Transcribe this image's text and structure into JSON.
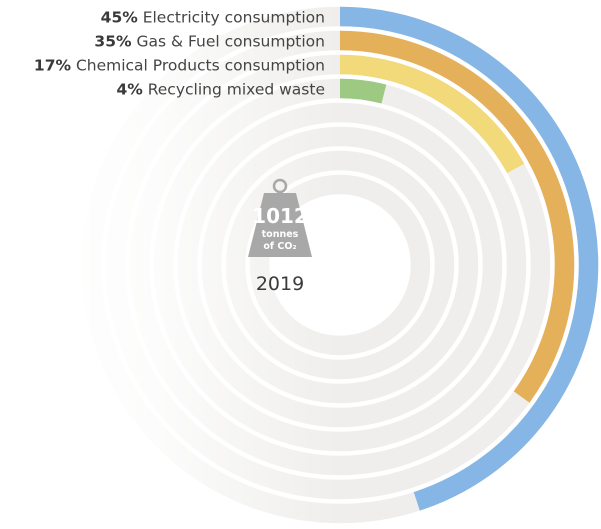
{
  "chart_data": {
    "type": "radial-bar",
    "total_value": "1012",
    "total_unit_line1": "tonnes",
    "total_unit_line2": "of CO₂",
    "year": "2019",
    "max_percent": 50,
    "ring_count": 8,
    "series": [
      {
        "percent": 45,
        "label": "45%",
        "name": "Electricity consumption",
        "color": "#86b6e5"
      },
      {
        "percent": 35,
        "label": "35%",
        "name": "Gas & Fuel consumption",
        "color": "#e5b05a"
      },
      {
        "percent": 17,
        "label": "17%",
        "name": "Chemical Products consumption",
        "color": "#f2da7a"
      },
      {
        "percent": 4,
        "label": "4%",
        "name": "Recycling mixed waste",
        "color": "#9dc982"
      }
    ],
    "track_color": "#efeeec"
  }
}
